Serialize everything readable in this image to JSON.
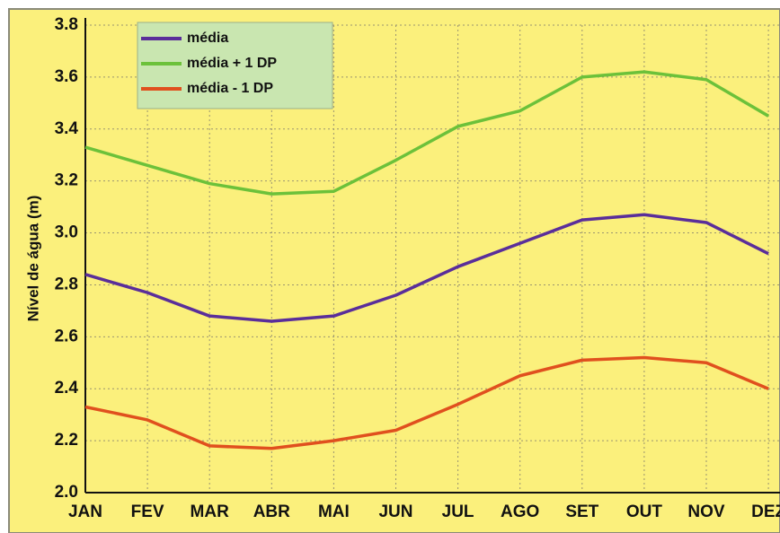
{
  "chart_data": {
    "type": "line",
    "y_label": "Nível de água (m)",
    "categories": [
      "JAN",
      "FEV",
      "MAR",
      "ABR",
      "MAI",
      "JUN",
      "JUL",
      "AGO",
      "SET",
      "OUT",
      "NOV",
      "DEZ"
    ],
    "series": [
      {
        "name": "média",
        "color": "#5a2e9a",
        "values": [
          2.84,
          2.77,
          2.68,
          2.66,
          2.68,
          2.76,
          2.87,
          2.96,
          3.05,
          3.07,
          3.04,
          2.92
        ]
      },
      {
        "name": "média + 1 DP",
        "color": "#6cc13a",
        "values": [
          3.33,
          3.26,
          3.19,
          3.15,
          3.16,
          3.28,
          3.41,
          3.47,
          3.6,
          3.62,
          3.59,
          3.45
        ]
      },
      {
        "name": "média - 1 DP",
        "color": "#e0501e",
        "values": [
          2.33,
          2.28,
          2.18,
          2.17,
          2.2,
          2.24,
          2.34,
          2.45,
          2.51,
          2.52,
          2.5,
          2.4
        ]
      }
    ],
    "ylim": [
      2,
      3.8
    ],
    "yticks": [
      {
        "value": 2,
        "label": "2.0"
      },
      2.2,
      2.4,
      2.6,
      2.8,
      {
        "value": 3,
        "label": "3.0"
      },
      3.2,
      3.4,
      3.6,
      3.8
    ],
    "grid": true,
    "legend": "upper left"
  }
}
